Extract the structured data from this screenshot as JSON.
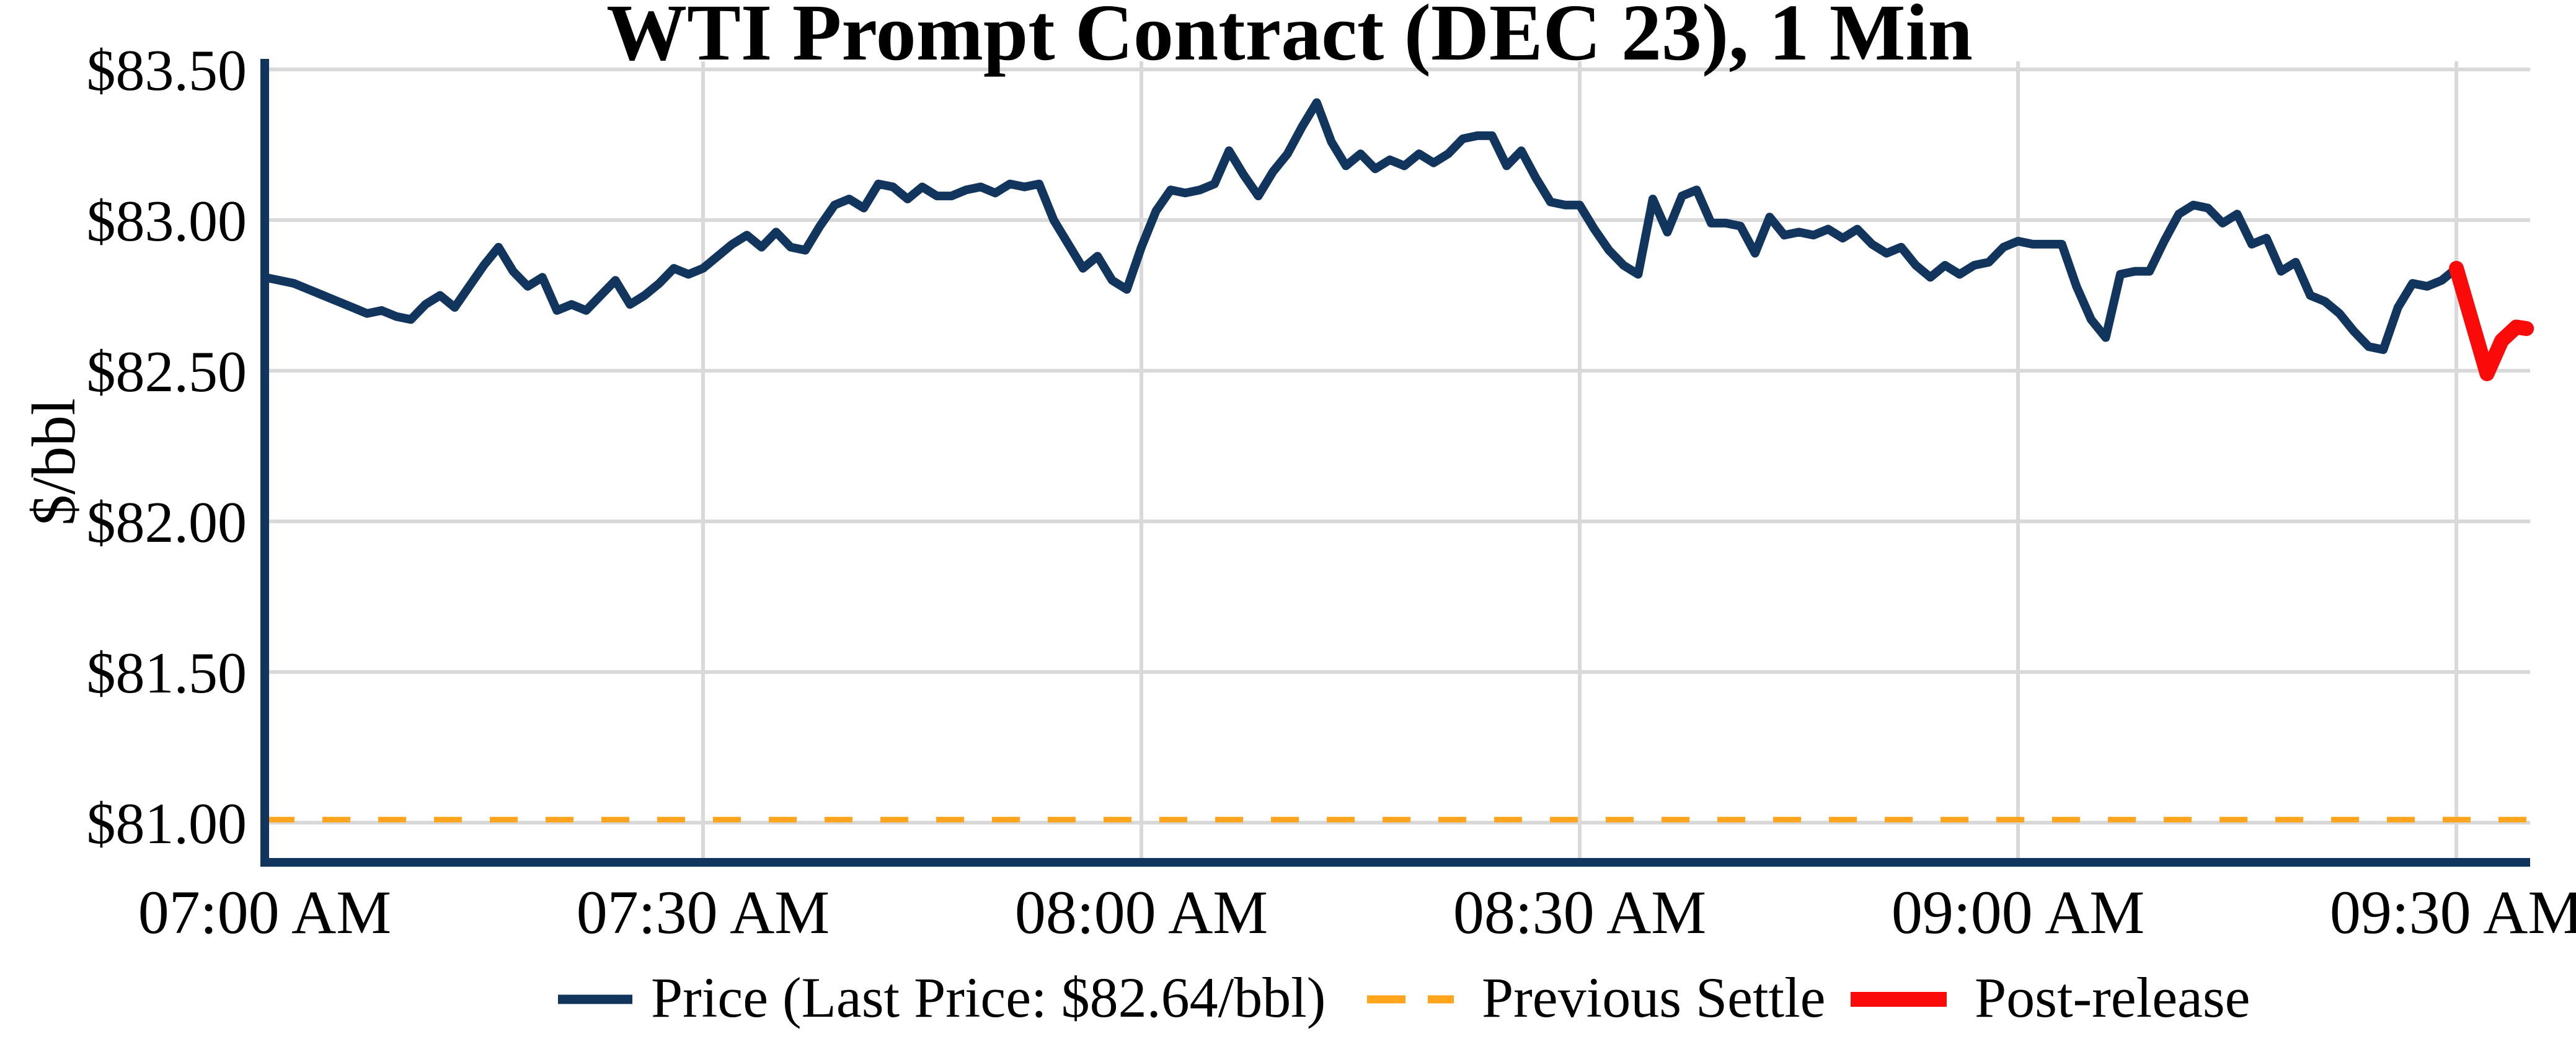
{
  "title": "WTI Prompt Contract (DEC 23), 1 Min",
  "colors": {
    "price": "#12355e",
    "previous_settle": "#ffa41c",
    "post_release": "#fb0a0a",
    "grid": "#d9d9d9",
    "axis": "#12355e",
    "background": "#ffffff"
  },
  "legend": {
    "price_label": "Price (Last Price: $82.64/bbl)",
    "settle_label": "Previous Settle",
    "post_label": "Post-release"
  },
  "chart_data": {
    "type": "line",
    "title": "WTI Prompt Contract (DEC 23), 1 Min",
    "xlabel": "",
    "ylabel": "$/bbl",
    "x_start": "07:00 AM",
    "x_end": "09:35 AM",
    "minutes_per_point": 1,
    "ylim": [
      80.87,
      83.53
    ],
    "grid": true,
    "legend_position": "bottom-center",
    "last_price": 82.64,
    "previous_settle": 81.01,
    "xticks": [
      {
        "t": 0,
        "label": "07:00 AM"
      },
      {
        "t": 30,
        "label": "07:30 AM"
      },
      {
        "t": 60,
        "label": "08:00 AM"
      },
      {
        "t": 90,
        "label": "08:30 AM"
      },
      {
        "t": 120,
        "label": "09:00 AM"
      },
      {
        "t": 150,
        "label": "09:30 AM"
      }
    ],
    "yticks": [
      {
        "price": 83.5,
        "label": "$83.50"
      },
      {
        "price": 83.0,
        "label": "$83.00"
      },
      {
        "price": 82.5,
        "label": "$82.50"
      },
      {
        "price": 82.0,
        "label": "$82.00"
      },
      {
        "price": 81.5,
        "label": "$81.50"
      },
      {
        "price": 81.0,
        "label": "$81.00"
      }
    ],
    "series": [
      {
        "name": "Price (Last Price: $82.64/bbl)",
        "kind": "price",
        "color": "#12355e",
        "t0": 0,
        "dt": 1,
        "values": [
          82.81,
          82.8,
          82.79,
          82.77,
          82.75,
          82.73,
          82.71,
          82.69,
          82.7,
          82.68,
          82.67,
          82.72,
          82.75,
          82.71,
          82.78,
          82.85,
          82.91,
          82.83,
          82.78,
          82.81,
          82.7,
          82.72,
          82.7,
          82.75,
          82.8,
          82.72,
          82.75,
          82.79,
          82.84,
          82.82,
          82.84,
          82.88,
          82.92,
          82.95,
          82.91,
          82.96,
          82.91,
          82.9,
          82.98,
          83.05,
          83.07,
          83.04,
          83.12,
          83.11,
          83.07,
          83.11,
          83.08,
          83.08,
          83.1,
          83.11,
          83.09,
          83.12,
          83.11,
          83.12,
          83.0,
          82.92,
          82.84,
          82.88,
          82.8,
          82.77,
          82.91,
          83.03,
          83.1,
          83.09,
          83.1,
          83.12,
          83.23,
          83.15,
          83.08,
          83.16,
          83.22,
          83.31,
          83.39,
          83.26,
          83.18,
          83.22,
          83.17,
          83.2,
          83.18,
          83.22,
          83.19,
          83.22,
          83.27,
          83.28,
          83.28,
          83.18,
          83.23,
          83.14,
          83.06,
          83.05,
          83.05,
          82.97,
          82.9,
          82.85,
          82.82,
          83.07,
          82.96,
          83.08,
          83.1,
          82.99,
          82.99,
          82.98,
          82.89,
          83.01,
          82.95,
          82.96,
          82.95,
          82.97,
          82.94,
          82.97,
          82.92,
          82.89,
          82.91,
          82.85,
          82.81,
          82.85,
          82.82,
          82.85,
          82.86,
          82.91,
          82.93,
          82.92,
          82.92,
          82.92,
          82.78,
          82.67,
          82.61,
          82.82,
          82.83,
          82.83,
          82.93,
          83.02,
          83.05,
          83.04,
          82.99,
          83.02,
          82.92,
          82.94,
          82.83,
          82.86,
          82.75,
          82.73,
          82.69,
          82.63,
          82.58,
          82.57,
          82.71,
          82.79,
          82.78,
          82.8,
          82.84
        ]
      },
      {
        "name": "Previous Settle",
        "kind": "hline",
        "color": "#ffa41c",
        "value": 81.01,
        "dash": [
          45,
          45
        ]
      },
      {
        "name": "Post-release",
        "kind": "post",
        "color": "#fb0a0a",
        "t": [
          150,
          152.1,
          153.1,
          154.1,
          154.8
        ],
        "values": [
          82.84,
          82.49,
          82.6,
          82.645,
          82.64
        ]
      }
    ]
  }
}
